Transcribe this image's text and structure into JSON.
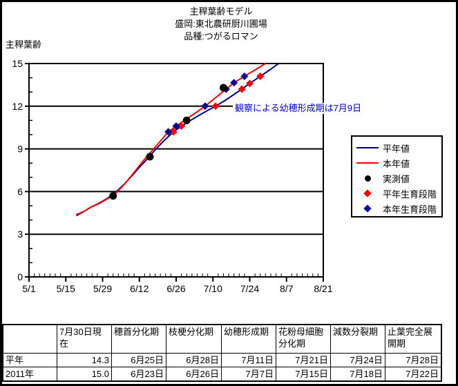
{
  "header": {
    "title": "主稈葉齢モデル",
    "location": "盛岡:東北農研厨川圃場",
    "variety": "品種:つがるロマン"
  },
  "chart_data": {
    "type": "line",
    "title": "主稈葉齢モデル",
    "ylabel": "主稈葉齢",
    "ylim": [
      0,
      15
    ],
    "y_major_ticks": [
      0,
      3,
      6,
      9,
      12,
      15
    ],
    "y_minor_step": 1,
    "gridlines_y": [
      3,
      6,
      9,
      12
    ],
    "x_tick_labels": [
      "5/1",
      "5/15",
      "5/29",
      "6/12",
      "6/26",
      "7/10",
      "7/24",
      "8/7",
      "8/21"
    ],
    "x_minor_step_days": 2,
    "annotation": {
      "text": "観察による幼穂形成期は7月9日",
      "color": "#0000cc"
    },
    "series": [
      {
        "name": "平年値",
        "kind": "line",
        "color": "#000080",
        "points": [
          [
            "5/19",
            4.3
          ],
          [
            "5/21",
            4.5
          ],
          [
            "5/23",
            4.72
          ],
          [
            "5/25",
            4.95
          ],
          [
            "5/27",
            5.12
          ],
          [
            "5/29",
            5.32
          ],
          [
            "5/31",
            5.55
          ],
          [
            "6/2",
            5.82
          ],
          [
            "6/4",
            6.12
          ],
          [
            "6/6",
            6.48
          ],
          [
            "6/8",
            6.88
          ],
          [
            "6/10",
            7.28
          ],
          [
            "6/12",
            7.7
          ],
          [
            "6/14",
            8.1
          ],
          [
            "6/16",
            8.5
          ],
          [
            "6/18",
            8.93
          ],
          [
            "6/20",
            9.32
          ],
          [
            "6/22",
            9.68
          ],
          [
            "6/25",
            10.2
          ],
          [
            "6/28",
            10.6
          ],
          [
            "7/1",
            10.95
          ],
          [
            "7/4",
            11.28
          ],
          [
            "7/7",
            11.6
          ],
          [
            "7/11",
            12.0
          ],
          [
            "7/14",
            12.33
          ],
          [
            "7/17",
            12.7
          ],
          [
            "7/21",
            13.2
          ],
          [
            "7/24",
            13.6
          ],
          [
            "7/28",
            14.1
          ],
          [
            "8/1",
            14.6
          ],
          [
            "8/4",
            15.0
          ]
        ]
      },
      {
        "name": "本年値",
        "kind": "line",
        "color": "#ff0000",
        "points": [
          [
            "5/19",
            4.4
          ],
          [
            "5/20",
            4.45
          ],
          [
            "5/22",
            4.62
          ],
          [
            "5/24",
            4.85
          ],
          [
            "5/26",
            5.02
          ],
          [
            "5/28",
            5.18
          ],
          [
            "5/30",
            5.4
          ],
          [
            "6/2",
            5.72
          ],
          [
            "6/4",
            6.05
          ],
          [
            "6/6",
            6.45
          ],
          [
            "6/8",
            6.9
          ],
          [
            "6/10",
            7.35
          ],
          [
            "6/12",
            7.82
          ],
          [
            "6/14",
            8.28
          ],
          [
            "6/16",
            8.7
          ],
          [
            "6/18",
            9.12
          ],
          [
            "6/20",
            9.55
          ],
          [
            "6/23",
            10.2
          ],
          [
            "6/26",
            10.6
          ],
          [
            "6/30",
            11.1
          ],
          [
            "7/3",
            11.48
          ],
          [
            "7/7",
            12.0
          ],
          [
            "7/11",
            12.6
          ],
          [
            "7/15",
            13.2
          ],
          [
            "7/18",
            13.65
          ],
          [
            "7/22",
            14.1
          ],
          [
            "7/26",
            14.55
          ],
          [
            "7/30",
            15.0
          ]
        ]
      },
      {
        "name": "実測値",
        "kind": "scatter-circle",
        "color": "#000000",
        "points": [
          [
            "6/2",
            5.7
          ],
          [
            "6/16",
            8.45
          ],
          [
            "6/30",
            11.0
          ],
          [
            "7/14",
            13.3
          ]
        ]
      },
      {
        "name": "平年生育段階",
        "kind": "scatter-diamond",
        "color": "#ff0000",
        "points": [
          [
            "6/25",
            10.2
          ],
          [
            "6/28",
            10.6
          ],
          [
            "7/11",
            12.0
          ],
          [
            "7/21",
            13.2
          ],
          [
            "7/24",
            13.6
          ],
          [
            "7/28",
            14.1
          ]
        ]
      },
      {
        "name": "本年生育段階",
        "kind": "scatter-diamond",
        "color": "#000099",
        "points": [
          [
            "6/23",
            10.2
          ],
          [
            "6/26",
            10.6
          ],
          [
            "7/7",
            12.0
          ],
          [
            "7/15",
            13.2
          ],
          [
            "7/18",
            13.65
          ],
          [
            "7/22",
            14.1
          ]
        ]
      }
    ],
    "legend": [
      {
        "sample": "line",
        "color": "#000080",
        "label": "平年値"
      },
      {
        "sample": "line",
        "color": "#ff0000",
        "label": "本年値"
      },
      {
        "sample": "circle",
        "color": "#000000",
        "label": "実測値"
      },
      {
        "sample": "diamond",
        "color": "#ff0000",
        "label": "平年生育段階"
      },
      {
        "sample": "diamond",
        "color": "#000099",
        "label": "本年生育段階"
      }
    ],
    "legend_position": "right"
  },
  "table": {
    "columns": [
      "",
      "7月30日現在",
      "穂首分化期",
      "枝梗分化期",
      "幼穂形成期",
      "花粉母細胞分化期",
      "減数分裂期",
      "止葉完全展開期"
    ],
    "rows": [
      {
        "label": "平年",
        "values": [
          "14.3",
          "6月25日",
          "6月28日",
          "7月11日",
          "7月21日",
          "7月24日",
          "7月28日"
        ]
      },
      {
        "label": "2011年",
        "values": [
          "15.0",
          "6月23日",
          "6月26日",
          "7月7日",
          "7月15日",
          "7月18日",
          "7月22日"
        ]
      }
    ]
  }
}
